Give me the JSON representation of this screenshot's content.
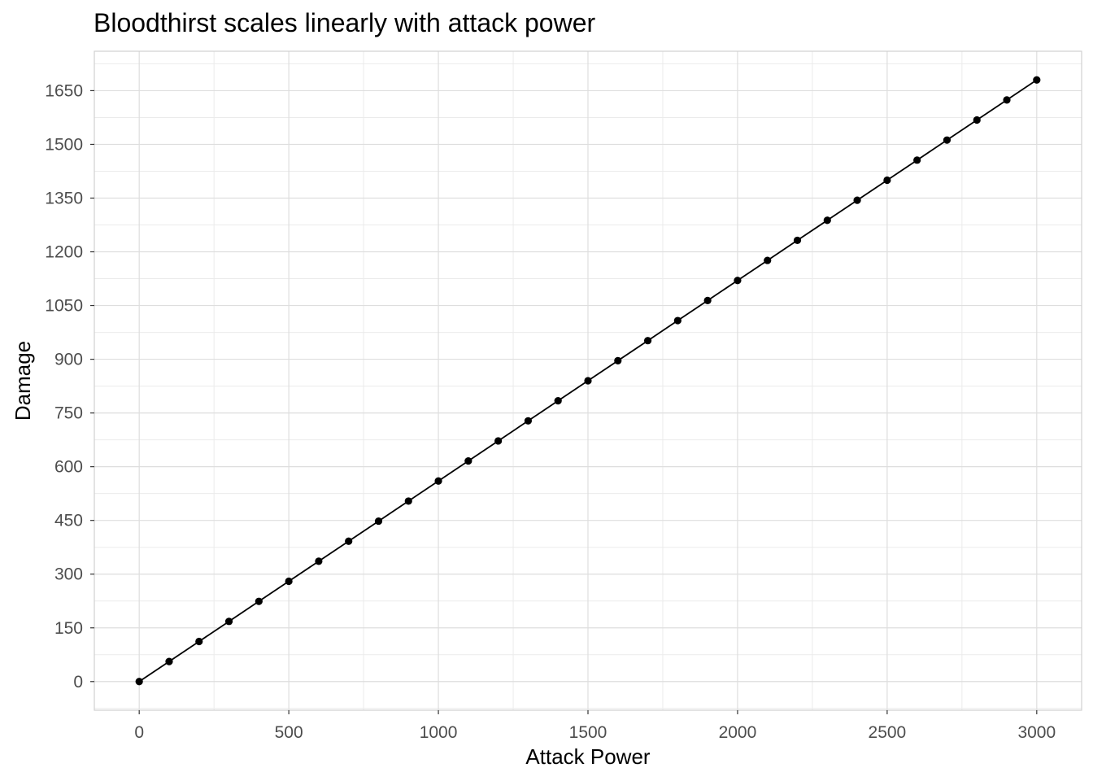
{
  "chart_data": {
    "type": "line",
    "title": "Bloodthirst scales linearly with attack power",
    "xlabel": "Attack Power",
    "ylabel": "Damage",
    "xlim": [
      -150,
      3150
    ],
    "ylim": [
      -80,
      1760
    ],
    "x_ticks": [
      0,
      500,
      1000,
      1500,
      2000,
      2500,
      3000
    ],
    "y_ticks": [
      0,
      150,
      300,
      450,
      600,
      750,
      900,
      1050,
      1200,
      1350,
      1500,
      1650
    ],
    "grid": true,
    "legend": "none",
    "line_color": "#000000",
    "point_color": "#000000",
    "series": [
      {
        "x": [
          0,
          100,
          200,
          300,
          400,
          500,
          600,
          700,
          800,
          900,
          1000,
          1100,
          1200,
          1300,
          1400,
          1500,
          1600,
          1700,
          1800,
          1900,
          2000,
          2100,
          2200,
          2300,
          2400,
          2500,
          2600,
          2700,
          2800,
          2900,
          3000
        ],
        "y": [
          0,
          56,
          112,
          168,
          224,
          280,
          336,
          392,
          448,
          504,
          560,
          616,
          672,
          728,
          784,
          840,
          896,
          952,
          1008,
          1064,
          1120,
          1176,
          1232,
          1288,
          1344,
          1400,
          1456,
          1512,
          1568,
          1624,
          1680
        ]
      }
    ]
  }
}
